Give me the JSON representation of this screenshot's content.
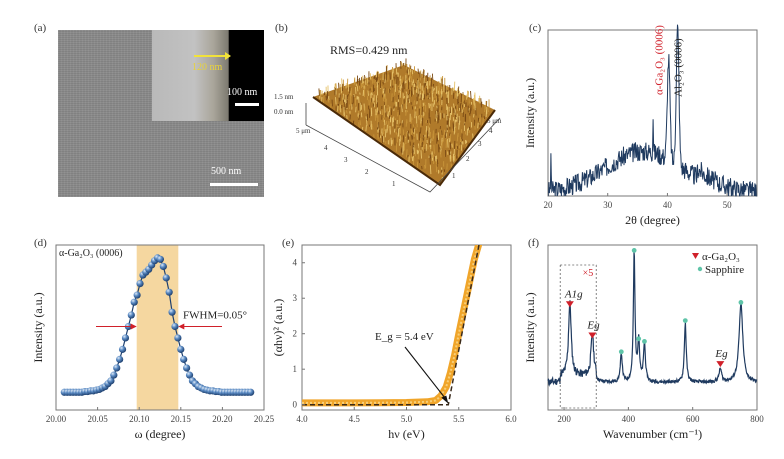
{
  "figure": {
    "panels": {
      "a": {
        "label": "(a)",
        "inset_thickness": "120 nm",
        "inset_scale": "100 nm",
        "scale": "500 nm"
      },
      "b": {
        "label": "(b)",
        "title": "RMS=0.429 nm",
        "z_ticks": [
          "1.5 nm",
          "0.0 nm"
        ],
        "x_axis_end": "5 μm",
        "y_axis_end": "5 μm",
        "x_ticks": [
          "4",
          "3",
          "2",
          "1"
        ],
        "y_ticks": [
          "1",
          "2",
          "3",
          "4"
        ]
      },
      "c": {
        "label": "(c)"
      },
      "d": {
        "label": "(d)"
      },
      "e": {
        "label": "(e)"
      },
      "f": {
        "label": "(f)"
      }
    },
    "colors": {
      "xrd_line": "#1f3a5f",
      "raman_line": "#1f3a5f",
      "ga2o3_red": "#d0202a",
      "sapphire_teal": "#5fc4a8",
      "fwhm_band": "#f5d7a0",
      "tauc_orange": "#f0a52a",
      "sphere_blue": "#3d6ea8"
    }
  },
  "chart_data": [
    {
      "panel": "c",
      "type": "line",
      "title": "",
      "xlabel": "2θ (degree)",
      "ylabel": "Intensity (a.u.)",
      "xlim": [
        20,
        55
      ],
      "x_ticks": [
        "20",
        "30",
        "40",
        "50"
      ],
      "annotations": [
        {
          "text": "α-Ga₂O₃ (0006)",
          "x": 40.2,
          "color": "red"
        },
        {
          "text": "Al₂O₃ (0006)",
          "x": 41.7,
          "color": "black"
        }
      ],
      "peaks": [
        {
          "x": 20.5,
          "rel_height": 0.18
        },
        {
          "x": 37.6,
          "rel_height": 0.22
        },
        {
          "x": 40.2,
          "rel_height": 0.6
        },
        {
          "x": 41.7,
          "rel_height": 0.83
        }
      ],
      "background_hump": {
        "center": 36,
        "rel_height": 0.25
      }
    },
    {
      "panel": "d",
      "type": "scatter",
      "title": "",
      "series_label": "α-Ga₂O₃ (0006)",
      "xlabel": "ω (degree)",
      "ylabel": "Intensity (a.u.)",
      "xlim": [
        20.0,
        20.25
      ],
      "x_ticks": [
        "20.00",
        "20.05",
        "20.10",
        "20.15",
        "20.20",
        "20.25"
      ],
      "peak_center": 20.122,
      "fwhm_label": "FWHM=0.05°",
      "fwhm": 0.05,
      "band": [
        20.097,
        20.147
      ],
      "x": [
        20.01,
        20.0135,
        20.017,
        20.0205,
        20.024,
        20.0275,
        20.031,
        20.0345,
        20.038,
        20.0415,
        20.045,
        20.0485,
        20.052,
        20.0555,
        20.059,
        20.0625,
        20.066,
        20.0695,
        20.073,
        20.0765,
        20.08,
        20.0835,
        20.087,
        20.0905,
        20.094,
        20.0975,
        20.101,
        20.1045,
        20.108,
        20.1115,
        20.115,
        20.1185,
        20.122,
        20.1255,
        20.129,
        20.1325,
        20.136,
        20.1395,
        20.143,
        20.1465,
        20.15,
        20.1535,
        20.157,
        20.1605,
        20.164,
        20.1675,
        20.171,
        20.1745,
        20.178,
        20.1815,
        20.185,
        20.1885,
        20.192,
        20.1955,
        20.199,
        20.2025,
        20.206,
        20.2095,
        20.213,
        20.2165,
        20.22,
        20.2235,
        20.227,
        20.2305,
        20.234
      ],
      "y": [
        0.04,
        0.04,
        0.04,
        0.04,
        0.04,
        0.04,
        0.04,
        0.045,
        0.045,
        0.05,
        0.05,
        0.055,
        0.06,
        0.07,
        0.08,
        0.1,
        0.12,
        0.16,
        0.21,
        0.27,
        0.34,
        0.42,
        0.5,
        0.58,
        0.67,
        0.72,
        0.8,
        0.86,
        0.88,
        0.9,
        0.93,
        0.96,
        0.98,
        0.97,
        0.92,
        0.84,
        0.74,
        0.6,
        0.5,
        0.42,
        0.34,
        0.27,
        0.21,
        0.16,
        0.12,
        0.1,
        0.08,
        0.07,
        0.06,
        0.055,
        0.05,
        0.05,
        0.045,
        0.045,
        0.04,
        0.04,
        0.04,
        0.04,
        0.04,
        0.04,
        0.04,
        0.04,
        0.04,
        0.04,
        0.04
      ]
    },
    {
      "panel": "e",
      "type": "line",
      "title": "",
      "xlabel": "hν (eV)",
      "ylabel": "(αhν)² (a.u.)",
      "xlim": [
        4.0,
        6.0
      ],
      "ylim": [
        -0.15,
        4.5
      ],
      "x_ticks": [
        "4.0",
        "4.5",
        "5.0",
        "5.5",
        "6.0"
      ],
      "y_ticks": [
        "0",
        "1",
        "2",
        "3",
        "4"
      ],
      "annotation": "E_g = 5.4 eV",
      "bandgap": 5.4,
      "x": [
        4.0,
        4.5,
        5.0,
        5.2,
        5.28,
        5.33,
        5.38,
        5.42,
        5.46,
        5.5,
        5.55,
        5.6,
        5.65,
        5.7
      ],
      "y": [
        0.05,
        0.05,
        0.06,
        0.08,
        0.12,
        0.25,
        0.5,
        0.9,
        1.4,
        2.0,
        2.7,
        3.4,
        4.1,
        4.6
      ],
      "fit_line": {
        "x": [
          4.0,
          5.4,
          5.7
        ],
        "y": [
          0.0,
          0.0,
          4.6
        ]
      }
    },
    {
      "panel": "f",
      "type": "line",
      "title": "",
      "xlabel": "Wavenumber (cm⁻¹)",
      "ylabel": "Intensity (a.u.)",
      "xlim": [
        150,
        800
      ],
      "x_ticks": [
        "200",
        "400",
        "600",
        "800"
      ],
      "legend": [
        {
          "marker": "▼",
          "label": "α-Ga₂O₃",
          "color": "red"
        },
        {
          "marker": "●",
          "label": "Sapphire",
          "color": "teal"
        }
      ],
      "legend_position": "top-right",
      "magnification_box": {
        "label": "×5",
        "x_range": [
          188,
          300
        ]
      },
      "ga2o3_peaks": [
        {
          "x": 218,
          "rel_height": 0.56,
          "label": "A1g"
        },
        {
          "x": 288,
          "rel_height": 0.32,
          "label": "Eg"
        },
        {
          "x": 686,
          "rel_height": 0.1,
          "label": "Eg"
        }
      ],
      "sapphire_peaks": [
        {
          "x": 378,
          "rel_height": 0.22
        },
        {
          "x": 418,
          "rel_height": 1.0
        },
        {
          "x": 432,
          "rel_height": 0.32
        },
        {
          "x": 450,
          "rel_height": 0.3
        },
        {
          "x": 577,
          "rel_height": 0.46
        },
        {
          "x": 750,
          "rel_height": 0.6
        }
      ]
    }
  ]
}
